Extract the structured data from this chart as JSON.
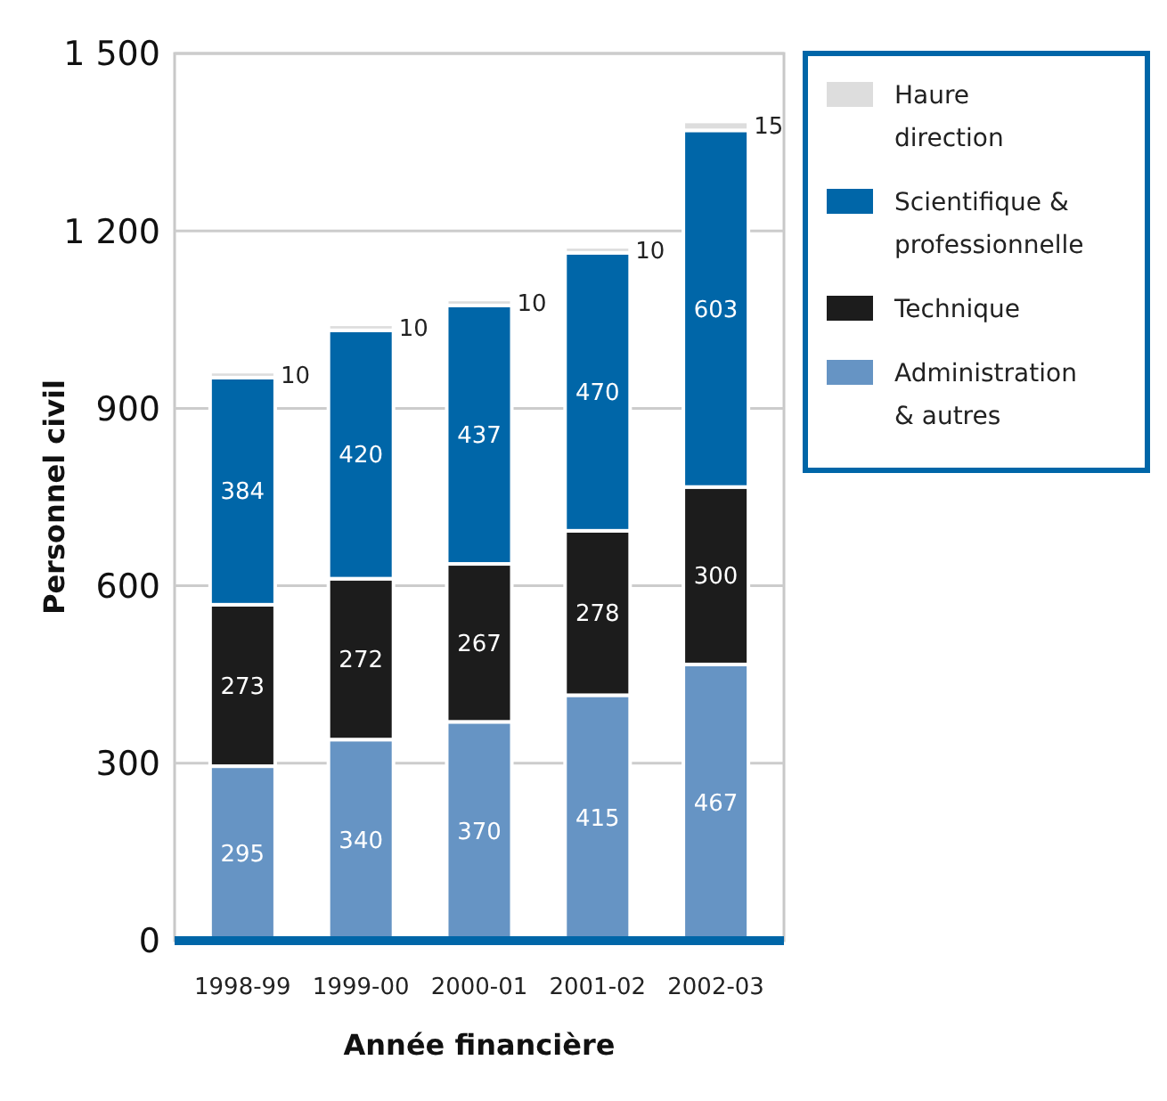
{
  "chart_data": {
    "type": "bar",
    "stacked": true,
    "xlabel": "Année financière",
    "ylabel": "Personnel civil",
    "categories": [
      "1998-99",
      "1999-00",
      "2000-01",
      "2001-02",
      "2002-03"
    ],
    "series": [
      {
        "name": "Administration & autres",
        "color": "#6694c4",
        "values": [
          295,
          340,
          370,
          415,
          467
        ]
      },
      {
        "name": "Technique",
        "color": "#1c1c1c",
        "values": [
          273,
          272,
          267,
          278,
          300
        ]
      },
      {
        "name": "Scientifique & professionnelle",
        "color": "#0066a8",
        "values": [
          384,
          420,
          437,
          470,
          603
        ]
      },
      {
        "name": "Haure direction",
        "color": "#dddddd",
        "values": [
          10,
          10,
          10,
          10,
          15
        ]
      }
    ],
    "ylim": [
      0,
      1500
    ],
    "yticks": [
      0,
      300,
      600,
      900,
      {
        "value": 1200,
        "label": "1 200"
      },
      {
        "value": 1500,
        "label": "1 500"
      }
    ],
    "grid": "y",
    "legend": "top right",
    "data_labels": true
  }
}
